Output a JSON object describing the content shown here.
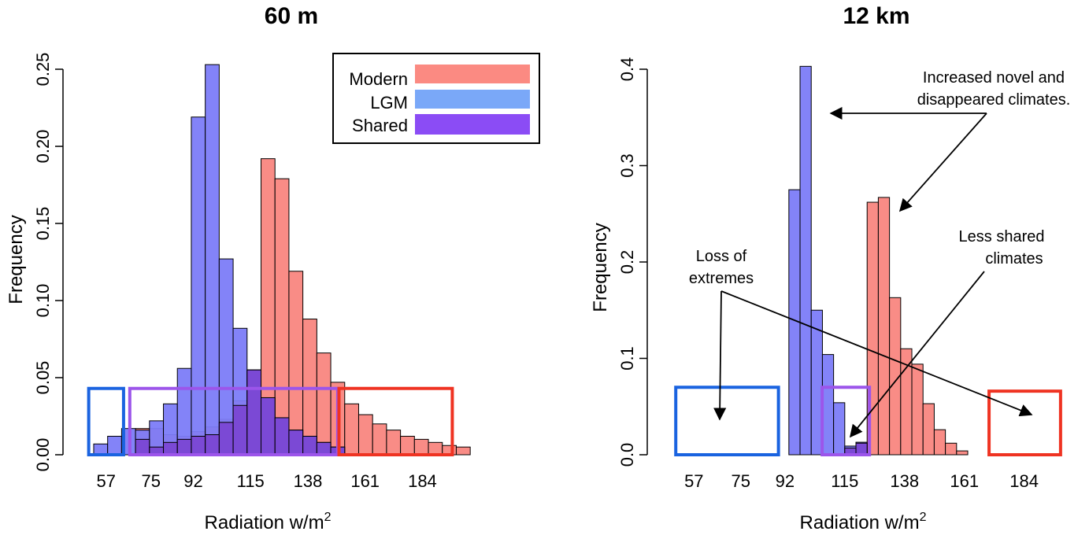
{
  "colors": {
    "modern": "#f98680",
    "lgm": "#7c7cf8",
    "shared": "#7a3fd0",
    "legend_modern": "#fb8a82",
    "legend_lgm": "#7aa8f8",
    "legend_shared": "#8b4cf5",
    "box_lgm": "#1a63e0",
    "box_shared": "#9c55ea",
    "box_modern": "#ef3322"
  },
  "chart_data": [
    {
      "type": "bar",
      "title": "60 m",
      "xlabel": "Radiation w/m",
      "xlabel_sup": "2",
      "ylabel": "Frequency",
      "ylim": [
        0,
        0.25
      ],
      "yticks": [
        "0.00",
        "0.05",
        "0.10",
        "0.15",
        "0.20",
        "0.25"
      ],
      "xticks": [
        "57",
        "75",
        "92",
        "115",
        "138",
        "161",
        "184"
      ],
      "xlim": [
        46,
        212
      ],
      "bin_width": 5.6,
      "bin_starts": [
        52,
        57.6,
        63.2,
        68.8,
        74.4,
        80,
        85.6,
        91.2,
        96.8,
        102.4,
        108,
        113.6,
        119.2,
        124.8,
        130.4,
        136,
        141.6,
        147.2,
        152.8,
        158.4,
        164,
        169.6,
        175.2,
        180.8,
        186.4,
        192,
        197.6
      ],
      "series": [
        {
          "name": "Modern",
          "values": [
            0,
            0,
            0,
            0.017,
            0.017,
            0.013,
            0.012,
            0.015,
            0.018,
            0.023,
            0.035,
            0.055,
            0.192,
            0.179,
            0.119,
            0.088,
            0.066,
            0.047,
            0.033,
            0.026,
            0.02,
            0.016,
            0.012,
            0.01,
            0.008,
            0.006,
            0.005
          ]
        },
        {
          "name": "LGM",
          "values": [
            0.007,
            0.012,
            0.017,
            0.016,
            0.022,
            0.033,
            0.056,
            0.219,
            0.253,
            0.127,
            0.082,
            0.055,
            0.037,
            0.024,
            0.016,
            0.012,
            0.008,
            0.005,
            0,
            0,
            0,
            0,
            0,
            0,
            0,
            0,
            0
          ]
        },
        {
          "name": "Shared",
          "values": [
            0,
            0,
            0,
            0.01,
            0.005,
            0.008,
            0.01,
            0.012,
            0.013,
            0.021,
            0.032,
            0.055,
            0.037,
            0.024,
            0.016,
            0.012,
            0.008,
            0.005,
            0,
            0,
            0,
            0,
            0,
            0,
            0,
            0,
            0
          ]
        }
      ],
      "legend": {
        "position": "top-right",
        "entries": [
          "Modern",
          "LGM",
          "Shared"
        ]
      },
      "boxes": [
        {
          "kind": "lgm",
          "x0": 50,
          "x1": 64,
          "y0": 0,
          "y1": 0.043
        },
        {
          "kind": "shared",
          "x0": 66.5,
          "x1": 150,
          "y0": 0,
          "y1": 0.043
        },
        {
          "kind": "modern",
          "x0": 150.5,
          "x1": 196,
          "y0": 0,
          "y1": 0.043
        }
      ]
    },
    {
      "type": "bar",
      "title": "12 km",
      "xlabel": "Radiation w/m",
      "xlabel_sup": "2",
      "ylabel": "Frequency",
      "ylim": [
        0,
        0.4
      ],
      "yticks": [
        "0.0",
        "0.1",
        "0.2",
        "0.3",
        "0.4"
      ],
      "xticks": [
        "57",
        "75",
        "92",
        "115",
        "138",
        "161",
        "184"
      ],
      "xlim": [
        46,
        205
      ],
      "bin_width": 4.3,
      "bin_starts": [
        93.5,
        97.8,
        102.1,
        106.4,
        110.7,
        115,
        119.3,
        123.6,
        127.9,
        132.2,
        136.5,
        140.8,
        145.1,
        149.4,
        153.7,
        158,
        162.3,
        166.6
      ],
      "series": [
        {
          "name": "Modern",
          "values": [
            0,
            0,
            0,
            0,
            0.001,
            0.007,
            0.012,
            0.262,
            0.267,
            0.163,
            0.11,
            0.094,
            0.053,
            0.026,
            0.012,
            0.004,
            0,
            0
          ]
        },
        {
          "name": "LGM",
          "values": [
            0.275,
            0.403,
            0.15,
            0.104,
            0.054,
            0.009,
            0.013,
            0,
            0,
            0,
            0,
            0,
            0,
            0,
            0,
            0,
            0,
            0
          ]
        },
        {
          "name": "Shared",
          "values": [
            0,
            0,
            0,
            0,
            0,
            0.007,
            0.012,
            0,
            0,
            0,
            0,
            0,
            0,
            0,
            0,
            0,
            0,
            0
          ]
        }
      ],
      "boxes": [
        {
          "kind": "lgm",
          "x0": 50,
          "x1": 89.5,
          "y0": 0,
          "y1": 0.07
        },
        {
          "kind": "shared",
          "x0": 106.3,
          "x1": 124.5,
          "y0": 0,
          "y1": 0.07
        },
        {
          "kind": "modern",
          "x0": 170.5,
          "x1": 198,
          "y0": 0,
          "y1": 0.066
        }
      ],
      "annotations": [
        {
          "lines": [
            "Increased novel and",
            "disappeared climates."
          ]
        },
        {
          "lines": [
            "Less shared",
            "climates"
          ]
        },
        {
          "lines": [
            "Loss of",
            "extremes"
          ]
        }
      ]
    }
  ]
}
